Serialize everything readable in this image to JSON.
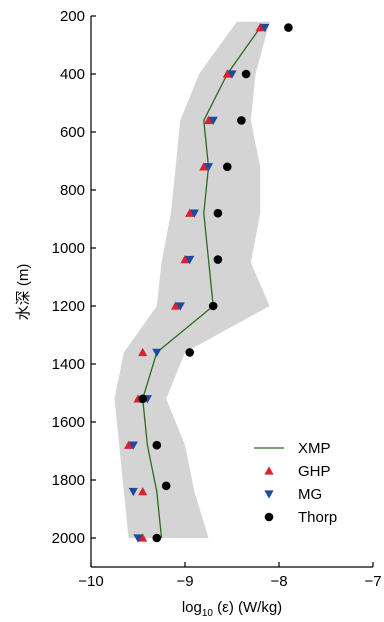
{
  "chart_data": {
    "type": "scatter",
    "xlabel_prefix": "log",
    "xlabel_sub": "10",
    "xlabel_suffix": " (ε) (W/kg)",
    "ylabel": "水深 (m)",
    "xlim": [
      -10,
      -7
    ],
    "ylim": [
      2100,
      200
    ],
    "y_inverted": true,
    "x_ticks": [
      -10,
      -9,
      -8,
      -7
    ],
    "y_ticks": [
      200,
      400,
      600,
      800,
      1000,
      1200,
      1400,
      1600,
      1800,
      2000
    ],
    "legend_position": "bottom-right",
    "band": {
      "depth": [
        220,
        400,
        560,
        720,
        880,
        1050,
        1200,
        1360,
        1520,
        1680,
        1840,
        2000
      ],
      "lower": [
        -8.45,
        -8.85,
        -9.05,
        -9.1,
        -9.15,
        -9.25,
        -9.3,
        -9.65,
        -9.75,
        -9.7,
        -9.65,
        -9.6
      ],
      "upper": [
        -8.1,
        -8.25,
        -8.3,
        -8.2,
        -8.2,
        -8.3,
        -8.1,
        -9.0,
        -9.2,
        -9.0,
        -8.9,
        -8.75
      ]
    },
    "series": [
      {
        "name": "XMP",
        "kind": "line",
        "color": "#2e6b1f",
        "depth": [
          240,
          400,
          560,
          720,
          880,
          1040,
          1200,
          1360,
          1520,
          1680,
          1840,
          2000
        ],
        "x": [
          -8.2,
          -8.55,
          -8.8,
          -8.75,
          -8.8,
          -8.75,
          -8.7,
          -9.3,
          -9.45,
          -9.4,
          -9.3,
          -9.25
        ]
      },
      {
        "name": "GHP",
        "kind": "marker",
        "marker": "triangle-up",
        "color": "#d9232d",
        "depth": [
          240,
          400,
          560,
          720,
          880,
          1040,
          1200,
          1360,
          1520,
          1680,
          1840,
          2000
        ],
        "x": [
          -8.2,
          -8.55,
          -8.75,
          -8.8,
          -8.95,
          -9.0,
          -9.1,
          -9.45,
          -9.5,
          -9.6,
          -9.45,
          -9.45
        ]
      },
      {
        "name": "MG",
        "kind": "marker",
        "marker": "triangle-down",
        "color": "#1f4a9e",
        "depth": [
          240,
          400,
          560,
          720,
          880,
          1040,
          1200,
          1360,
          1520,
          1680,
          1840,
          2000
        ],
        "x": [
          -8.15,
          -8.5,
          -8.7,
          -8.75,
          -8.9,
          -8.95,
          -9.05,
          -9.3,
          -9.4,
          -9.55,
          -9.55,
          -9.5
        ]
      },
      {
        "name": "Thorp",
        "kind": "marker",
        "marker": "circle",
        "color": "#000000",
        "depth": [
          240,
          400,
          560,
          720,
          880,
          1040,
          1200,
          1360,
          1520,
          1680,
          1820,
          2000
        ],
        "x": [
          -7.9,
          -8.35,
          -8.4,
          -8.55,
          -8.65,
          -8.65,
          -8.7,
          -8.95,
          -9.45,
          -9.3,
          -9.2,
          -9.3
        ]
      }
    ]
  }
}
